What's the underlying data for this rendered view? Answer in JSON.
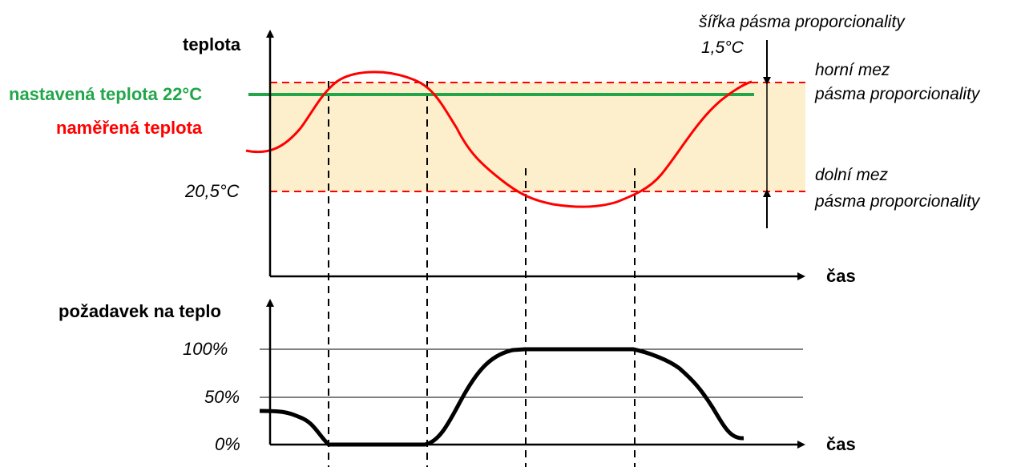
{
  "top_chart": {
    "y_axis_label": "teplota",
    "x_axis_label": "čas",
    "setpoint_label": "nastavená teplota 22°C",
    "measured_label": "naměřená teplota",
    "lower_value_label": "20,5°C",
    "band_width_title": "šířka pásma proporcionality",
    "band_width_value": "1,5°C",
    "upper_limit_line1": "horní mez",
    "upper_limit_line2": "pásma proporcionality",
    "lower_limit_line1": "dolní mez",
    "lower_limit_line2": "pásma proporcionality"
  },
  "bottom_chart": {
    "y_axis_label": "požadavek na teplo",
    "x_axis_label": "čas",
    "tick_100": "100%",
    "tick_50": "50%",
    "tick_0": "0%"
  },
  "colors": {
    "band_fill": "#fdefcc",
    "band_limits": "#ff0000",
    "setpoint": "#22a64a",
    "measured": "#ff0000",
    "demand": "#000000",
    "axes": "#000000"
  }
}
